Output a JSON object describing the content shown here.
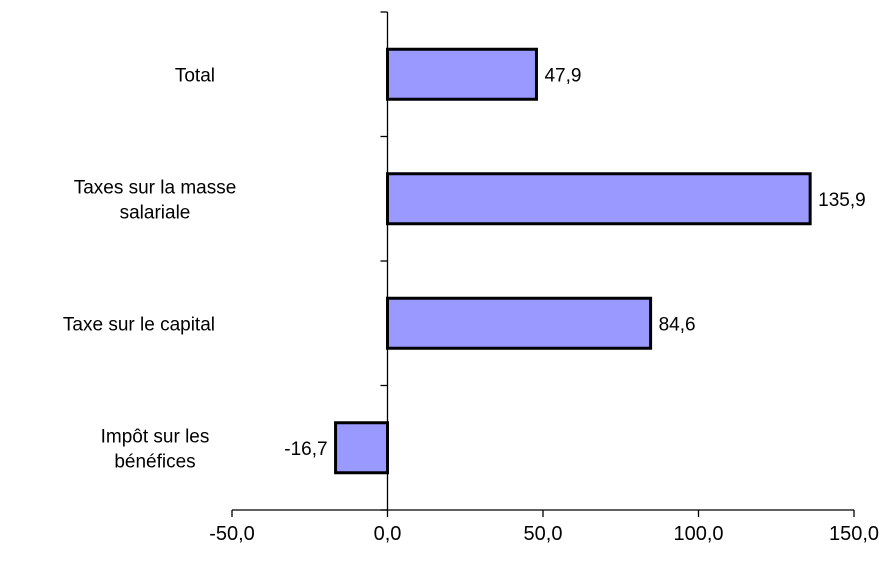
{
  "chart_data": {
    "type": "bar",
    "orientation": "horizontal",
    "categories": [
      [
        "Total"
      ],
      [
        "Taxes sur la masse",
        "salariale"
      ],
      [
        "Taxe sur le capital"
      ],
      [
        "Impôt sur les",
        "bénéfices"
      ]
    ],
    "values": [
      47.9,
      135.9,
      84.6,
      -16.7
    ],
    "value_labels": [
      "47,9",
      "135,9",
      "84,6",
      "-16,7"
    ],
    "xlim": [
      -50,
      150
    ],
    "xticks": [
      -50,
      0,
      50,
      100,
      150
    ],
    "xtick_labels": [
      "-50,0",
      "0,0",
      "50,0",
      "100,0",
      "150,0"
    ],
    "title": "",
    "xlabel": "",
    "ylabel": "",
    "grid": false,
    "legend": "none",
    "bar_color": "#9999ff",
    "bar_edge_color": "#000000"
  }
}
